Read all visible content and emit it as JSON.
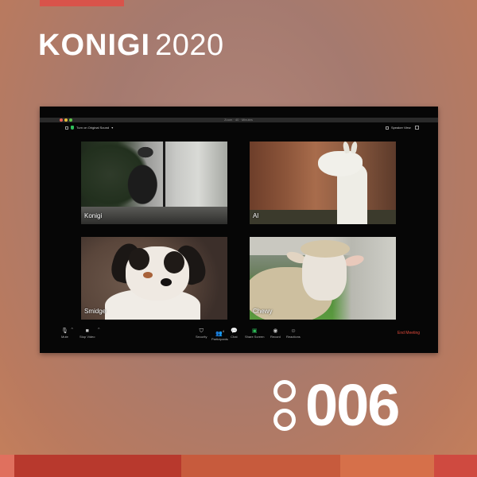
{
  "brand": {
    "name": "KONIGI",
    "year": "2020",
    "accent_color": "#d9534a"
  },
  "window": {
    "title": "Zoom · 40 · Minutes"
  },
  "meeting": {
    "audio_button": "Turn on Original Sound",
    "view_button": "Speaker View",
    "participants": [
      {
        "name": "Konigi"
      },
      {
        "name": "Al"
      },
      {
        "name": "Smidge"
      },
      {
        "name": "Chewy"
      }
    ],
    "toolbar": {
      "mute": "Mute",
      "video": "Stop Video",
      "security": "Security",
      "participants": "Participants",
      "participants_count": "4",
      "chat": "Chat",
      "share": "Share Screen",
      "record": "Record",
      "reactions": "Reactions",
      "end": "End Meeting"
    },
    "icons": [
      "microphone-icon",
      "video-camera-icon",
      "shield-icon",
      "people-icon",
      "chat-bubble-icon",
      "share-screen-icon",
      "record-icon",
      "smiley-icon"
    ],
    "end_color": "#e24a3b"
  },
  "episode": {
    "number": "006"
  },
  "footer_colors": [
    "#e0705e",
    "#b8392d",
    "#c75b3d",
    "#d6704a",
    "#cf4a40"
  ]
}
